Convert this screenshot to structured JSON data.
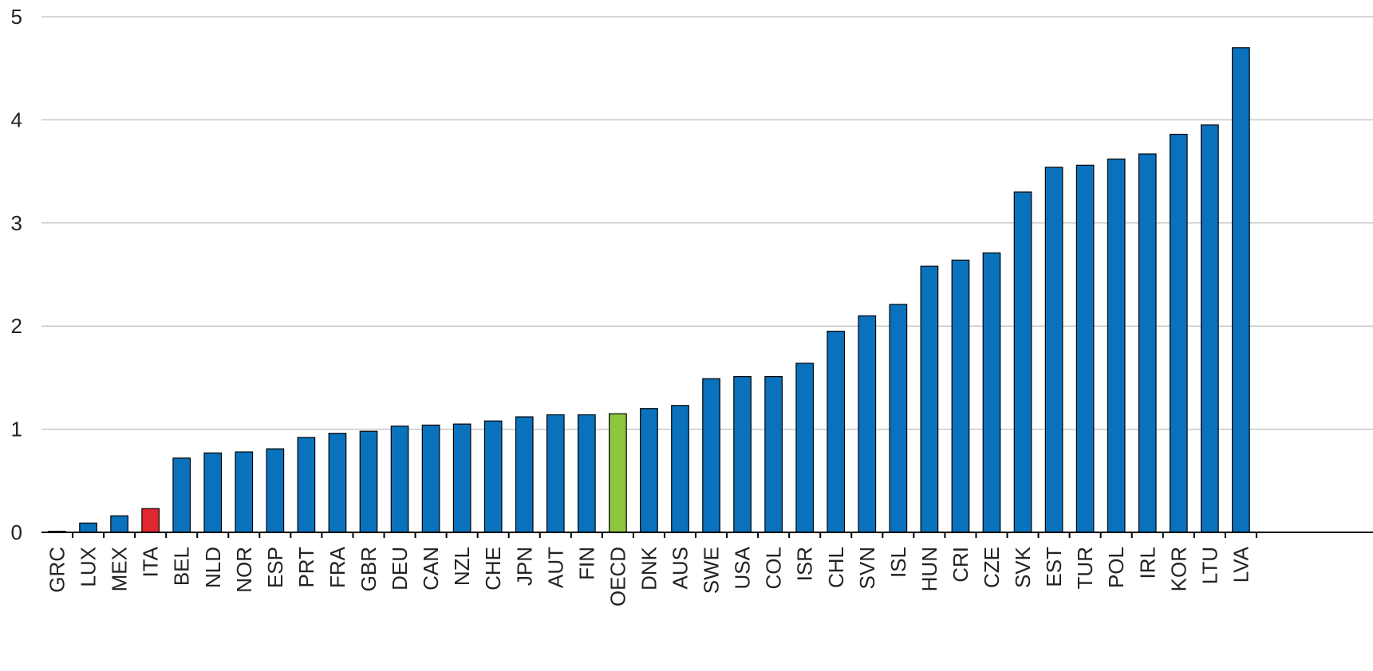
{
  "chart_data": {
    "type": "bar",
    "title": "",
    "xlabel": "",
    "ylabel": "",
    "ylim": [
      0,
      5
    ],
    "yticks": [
      "0",
      "1",
      "2",
      "3",
      "4",
      "5"
    ],
    "grid": true,
    "legend": "none",
    "categories": [
      "GRC",
      "LUX",
      "MEX",
      "ITA",
      "BEL",
      "NLD",
      "NOR",
      "ESP",
      "PRT",
      "FRA",
      "GBR",
      "DEU",
      "CAN",
      "NZL",
      "CHE",
      "JPN",
      "AUT",
      "FIN",
      "OECD",
      "DNK",
      "AUS",
      "SWE",
      "USA",
      "COL",
      "ISR",
      "CHL",
      "SVN",
      "ISL",
      "HUN",
      "CRI",
      "CZE",
      "SVK",
      "EST",
      "TUR",
      "POL",
      "IRL",
      "KOR",
      "LTU",
      "LVA"
    ],
    "values": [
      0.01,
      0.09,
      0.16,
      0.23,
      0.72,
      0.77,
      0.78,
      0.81,
      0.92,
      0.96,
      0.98,
      1.03,
      1.04,
      1.05,
      1.08,
      1.12,
      1.14,
      1.14,
      1.15,
      1.2,
      1.23,
      1.49,
      1.51,
      1.51,
      1.64,
      1.95,
      2.1,
      2.21,
      2.58,
      2.64,
      2.71,
      3.3,
      3.54,
      3.56,
      3.62,
      3.67,
      3.86,
      3.95,
      4.7
    ],
    "colors": {
      "default": "#0a72bd",
      "ITA": "#e0282e",
      "OECD": "#8dc63f",
      "grid": "#c8c8c8",
      "axis": "#000000",
      "bar_outline": "#000000"
    }
  }
}
